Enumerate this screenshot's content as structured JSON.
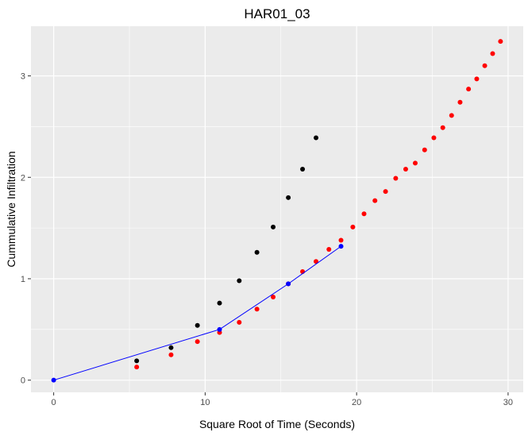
{
  "chart_data": {
    "type": "scatter",
    "title": "HAR01_03",
    "xlabel": "Square Root of Time (Seconds)",
    "ylabel": "Cummulative Infiltration",
    "xlim": [
      -1.5,
      31
    ],
    "ylim": [
      -0.12,
      3.49
    ],
    "x_ticks": [
      0,
      10,
      20,
      30
    ],
    "y_ticks": [
      0,
      1,
      2,
      3
    ],
    "grid": true,
    "legend": "none",
    "colors": {
      "black": "#000000",
      "red": "#ff0000",
      "blue": "#0000ff",
      "panel": "#ebebeb",
      "grid": "#ffffff"
    },
    "series": [
      {
        "color": "black",
        "kind": "points",
        "x": [
          5.48,
          7.75,
          9.49,
          10.95,
          12.25,
          13.42,
          14.49,
          15.49,
          16.43,
          17.32
        ],
        "y": [
          0.19,
          0.32,
          0.54,
          0.76,
          0.98,
          1.26,
          1.51,
          1.8,
          2.08,
          2.39
        ]
      },
      {
        "color": "red",
        "kind": "points",
        "x": [
          5.48,
          7.75,
          9.49,
          10.95,
          12.25,
          13.42,
          14.49,
          15.49,
          16.43,
          17.32,
          18.17,
          18.97,
          19.75,
          20.49,
          21.21,
          21.91,
          22.58,
          23.24,
          23.87,
          24.49,
          25.1,
          25.69,
          26.27,
          26.83,
          27.39,
          27.93,
          28.46,
          28.98,
          29.5
        ],
        "y": [
          0.13,
          0.25,
          0.38,
          0.47,
          0.57,
          0.7,
          0.82,
          0.95,
          1.07,
          1.17,
          1.29,
          1.38,
          1.51,
          1.64,
          1.77,
          1.86,
          1.99,
          2.08,
          2.14,
          2.27,
          2.39,
          2.49,
          2.61,
          2.74,
          2.87,
          2.97,
          3.1,
          3.22,
          3.34
        ]
      },
      {
        "color": "blue",
        "kind": "line+points",
        "x": [
          0,
          10.95,
          15.49,
          18.97
        ],
        "y": [
          0,
          0.5,
          0.95,
          1.32
        ]
      }
    ]
  }
}
